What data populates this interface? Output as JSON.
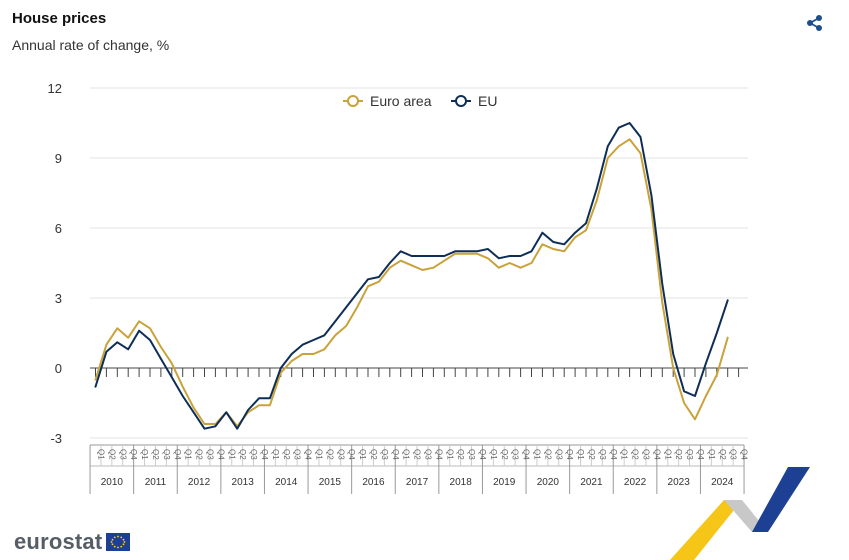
{
  "header": {
    "title": "House prices",
    "subtitle": "Annual rate of change, %"
  },
  "footer": {
    "logo_text": "eurostat"
  },
  "icons": {
    "share": "share-icon",
    "eu_flag": "eu-flag-icon"
  },
  "chart_data": {
    "type": "line",
    "ylim": [
      -3,
      12
    ],
    "yticks": [
      12,
      9,
      6,
      3,
      0,
      -3
    ],
    "grid": true,
    "legend_position": "top-center",
    "quarter_labels": [
      "Q1",
      "Q2",
      "Q3",
      "Q4"
    ],
    "years": [
      "2010",
      "2011",
      "2012",
      "2013",
      "2014",
      "2015",
      "2016",
      "2017",
      "2018",
      "2019",
      "2020",
      "2021",
      "2022",
      "2023",
      "2024"
    ],
    "series": [
      {
        "name": "Euro area",
        "color": "#c9a23a",
        "values": [
          -0.5,
          1.0,
          1.7,
          1.3,
          2.0,
          1.7,
          0.9,
          0.2,
          -0.8,
          -1.7,
          -2.4,
          -2.4,
          -1.9,
          -2.5,
          -1.9,
          -1.6,
          -1.6,
          -0.2,
          0.3,
          0.6,
          0.6,
          0.8,
          1.4,
          1.8,
          2.6,
          3.5,
          3.7,
          4.3,
          4.6,
          4.4,
          4.2,
          4.3,
          4.6,
          4.9,
          4.9,
          4.9,
          4.7,
          4.3,
          4.5,
          4.3,
          4.5,
          5.3,
          5.1,
          5.0,
          5.6,
          5.9,
          7.2,
          9.0,
          9.5,
          9.8,
          9.2,
          6.8,
          2.8,
          0.0,
          -1.5,
          -2.2,
          -1.2,
          -0.3,
          1.3
        ]
      },
      {
        "name": "EU",
        "color": "#0e2e58",
        "values": [
          -0.8,
          0.7,
          1.1,
          0.8,
          1.6,
          1.2,
          0.4,
          -0.4,
          -1.2,
          -1.9,
          -2.6,
          -2.5,
          -1.9,
          -2.6,
          -1.8,
          -1.3,
          -1.3,
          0.0,
          0.6,
          1.0,
          1.2,
          1.4,
          2.0,
          2.6,
          3.2,
          3.8,
          3.9,
          4.5,
          5.0,
          4.8,
          4.8,
          4.8,
          4.8,
          5.0,
          5.0,
          5.0,
          5.1,
          4.7,
          4.8,
          4.8,
          5.0,
          5.8,
          5.4,
          5.3,
          5.8,
          6.2,
          7.7,
          9.5,
          10.3,
          10.5,
          9.9,
          7.4,
          3.6,
          0.6,
          -1.0,
          -1.2,
          0.2,
          1.5,
          2.9
        ]
      }
    ]
  }
}
